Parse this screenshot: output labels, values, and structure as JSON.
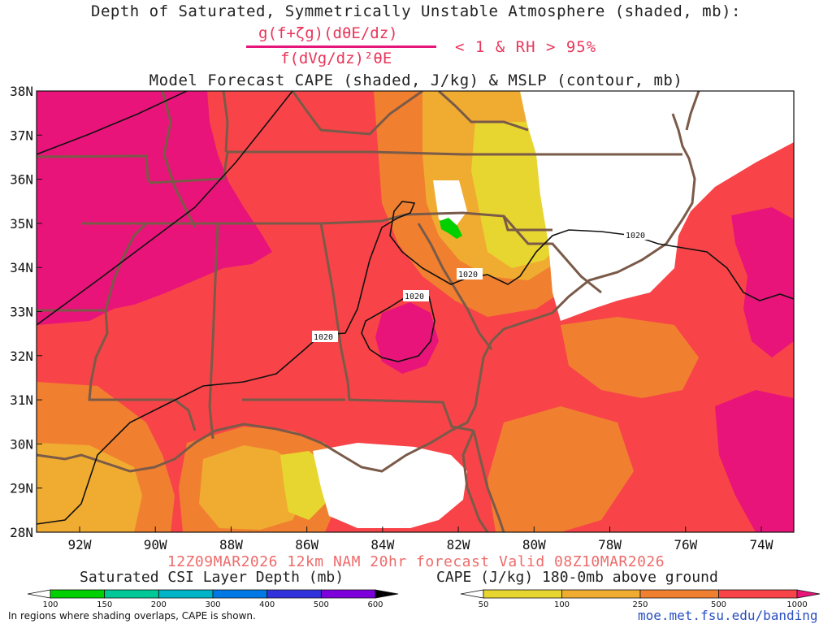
{
  "title_line1": "Depth of Saturated, Symmetrically Unstable Atmosphere (shaded, mb):",
  "formula": {
    "numerator": "g(f+ζg)(dθE/dz)",
    "denominator": "f(dVg/dz)²θE",
    "condition": "< 1 & RH > 95%"
  },
  "title_line2": "Model Forecast CAPE (shaded, J/kg) & MSLP (contour, mb)",
  "axes": {
    "lat_labels": [
      "38N",
      "37N",
      "36N",
      "35N",
      "34N",
      "33N",
      "32N",
      "31N",
      "30N",
      "29N",
      "28N"
    ],
    "lon_labels": [
      "92W",
      "90W",
      "88W",
      "86W",
      "84W",
      "82W",
      "80W",
      "78W",
      "76W",
      "74W"
    ]
  },
  "contour_label": "1020",
  "valid_line": "12Z09MAR2026 12km NAM 20hr forecast Valid 08Z10MAR2026",
  "colorbar_csi": {
    "title": "Saturated CSI Layer Depth (mb)",
    "ticks": [
      "100",
      "150",
      "200",
      "300",
      "400",
      "500",
      "600"
    ],
    "colors": [
      "#ffffff",
      "#00d000",
      "#00c896",
      "#00b4c8",
      "#0078e6",
      "#3232dc",
      "#7d00dc",
      "#000000"
    ]
  },
  "colorbar_cape": {
    "title": "CAPE (J/kg) 180-0mb above ground",
    "ticks": [
      "50",
      "100",
      "250",
      "500",
      "1000"
    ],
    "colors": [
      "#ffffff",
      "#e8d630",
      "#f0ac30",
      "#f08030",
      "#f84448",
      "#e8147a"
    ]
  },
  "footnote": "In regions where shading overlaps, CAPE is shown.",
  "credit": "moe.met.fsu.edu/banding"
}
